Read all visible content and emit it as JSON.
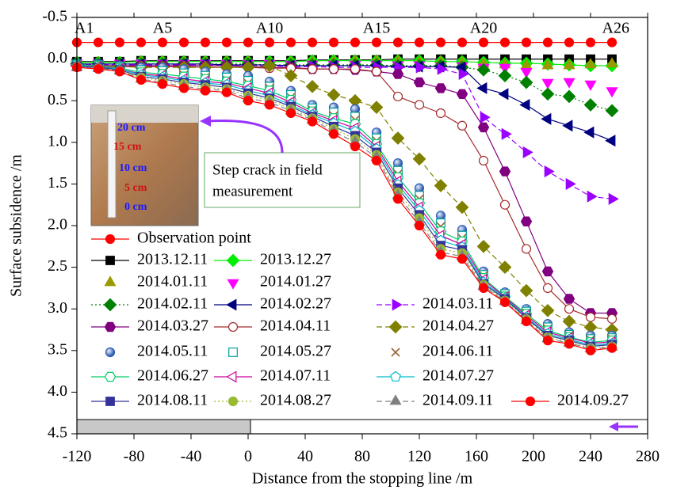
{
  "chart_data": {
    "type": "line",
    "xlabel": "Distance from the stopping line /m",
    "ylabel": "Surface subsidence /m",
    "xlim": [
      -120,
      280
    ],
    "xticks": [
      -120,
      -80,
      -40,
      0,
      40,
      80,
      120,
      160,
      200,
      240,
      280
    ],
    "ylim": [
      -0.5,
      4.5
    ],
    "y_inverted": true,
    "yticks": [
      -0.5,
      {
        "value": 0,
        "label": "0.0"
      },
      0.5,
      {
        "value": 1,
        "label": "1.0"
      },
      1.5,
      {
        "value": 2,
        "label": "2.0"
      },
      2.5,
      {
        "value": 3,
        "label": "3.0"
      },
      3.5,
      {
        "value": 4,
        "label": "4.0"
      },
      4.5
    ],
    "x": [
      -120,
      -105,
      -90,
      -75,
      -60,
      -45,
      -30,
      -15,
      0,
      15,
      30,
      45,
      60,
      75,
      90,
      105,
      120,
      135,
      150,
      165,
      180,
      195,
      210,
      225,
      240,
      255
    ],
    "point_labels": [
      {
        "x": -120,
        "label": "A1"
      },
      {
        "x": -60,
        "label": "A5"
      },
      {
        "x": 15,
        "label": "A10"
      },
      {
        "x": 90,
        "label": "A15"
      },
      {
        "x": 165,
        "label": "A20"
      },
      {
        "x": 255,
        "label": "A26"
      }
    ],
    "annotations": {
      "photo_scale": [
        "20 cm",
        "15 cm",
        "10 cm",
        "5 cm",
        "0 cm"
      ],
      "callout": [
        "Step crack in field",
        "measurement"
      ]
    },
    "series": [
      {
        "name": "Observation point",
        "color": "#ff0000",
        "marker": "circle",
        "filled": true,
        "dash": "solid",
        "values": [
          -0.2,
          -0.2,
          -0.2,
          -0.2,
          -0.2,
          -0.2,
          -0.2,
          -0.2,
          -0.2,
          -0.2,
          -0.2,
          -0.2,
          -0.2,
          -0.2,
          -0.2,
          -0.2,
          -0.2,
          -0.2,
          -0.2,
          -0.2,
          -0.2,
          -0.2,
          -0.2,
          -0.2,
          -0.2,
          -0.2
        ]
      },
      {
        "name": "2013.12.11",
        "color": "#000000",
        "marker": "square",
        "filled": true,
        "dash": "solid",
        "values": [
          0.03,
          0.03,
          0.03,
          0.02,
          0.02,
          0.02,
          0.02,
          0.02,
          0.02,
          0.02,
          0.02,
          0.01,
          0.01,
          0.01,
          0.01,
          0,
          0,
          0,
          0,
          0,
          0,
          0,
          0,
          0,
          0,
          0
        ]
      },
      {
        "name": "2013.12.27",
        "color": "#00ee00",
        "marker": "diamond",
        "filled": true,
        "dash": "solid",
        "values": [
          0.04,
          0.04,
          0.04,
          0.03,
          0.03,
          0.03,
          0.03,
          0.03,
          0.03,
          0.03,
          0.03,
          0.02,
          0.02,
          0.02,
          0.02,
          0.02,
          0.02,
          0.03,
          0.03,
          0.04,
          0.05,
          0.05,
          0.06,
          0.07,
          0.08,
          0.08
        ]
      },
      {
        "name": "2014.01.11",
        "color": "#999900",
        "marker": "tri-up",
        "filled": true,
        "dash": "none",
        "values": [
          0.05,
          0.05,
          0.05,
          0.04,
          0.04,
          0.04,
          0.04,
          0.04,
          0.04,
          0.05,
          0.05,
          0.04,
          0.04,
          0.03,
          0.03,
          0.03,
          0.04,
          0.04,
          0.05,
          0.06,
          0.07,
          0.08,
          0.08,
          0.08,
          0.07,
          0.06
        ]
      },
      {
        "name": "2014.01.27",
        "color": "#ff00ff",
        "marker": "tri-down",
        "filled": true,
        "dash": "none",
        "values": [
          0.05,
          0.05,
          0.05,
          0.05,
          0.05,
          0.05,
          0.05,
          0.05,
          0.05,
          0.05,
          0.06,
          0.06,
          0.06,
          0.06,
          0.06,
          0.07,
          0.07,
          0.08,
          0.08,
          0.1,
          0.1,
          0.15,
          0.28,
          0.27,
          0.3,
          0.38
        ]
      },
      {
        "name": "2014.02.11",
        "color": "#008000",
        "marker": "diamond",
        "filled": true,
        "dash": "dot",
        "values": [
          0.06,
          0.06,
          0.06,
          0.06,
          0.06,
          0.06,
          0.06,
          0.06,
          0.06,
          0.07,
          0.07,
          0.07,
          0.07,
          0.07,
          0.07,
          0.08,
          0.08,
          0.08,
          0.1,
          0.13,
          0.2,
          0.28,
          0.42,
          0.45,
          0.55,
          0.62
        ]
      },
      {
        "name": "2014.02.27",
        "color": "#000080",
        "marker": "tri-left",
        "filled": true,
        "dash": "solid",
        "values": [
          0.06,
          0.06,
          0.06,
          0.06,
          0.06,
          0.06,
          0.06,
          0.07,
          0.07,
          0.07,
          0.08,
          0.08,
          0.08,
          0.08,
          0.08,
          0.09,
          0.09,
          0.09,
          0.1,
          0.35,
          0.42,
          0.55,
          0.72,
          0.8,
          0.88,
          0.98
        ]
      },
      {
        "name": "2014.03.11",
        "color": "#9900ff",
        "marker": "tri-right",
        "filled": true,
        "dash": "dash",
        "values": [
          0.07,
          0.07,
          0.07,
          0.07,
          0.07,
          0.07,
          0.07,
          0.08,
          0.08,
          0.08,
          0.09,
          0.09,
          0.1,
          0.1,
          0.1,
          0.1,
          0.1,
          0.12,
          0.18,
          0.7,
          0.9,
          1.12,
          1.35,
          1.5,
          1.65,
          1.68
        ]
      },
      {
        "name": "2014.03.27",
        "color": "#800080",
        "marker": "hexagon",
        "filled": true,
        "dash": "solid",
        "values": [
          0.08,
          0.08,
          0.08,
          0.08,
          0.08,
          0.08,
          0.08,
          0.08,
          0.09,
          0.1,
          0.1,
          0.12,
          0.12,
          0.13,
          0.15,
          0.18,
          0.28,
          0.35,
          0.42,
          0.82,
          1.35,
          1.95,
          2.55,
          2.88,
          3.05,
          3.05
        ]
      },
      {
        "name": "2014.04.11",
        "color": "#a52a2a",
        "marker": "circle",
        "filled": false,
        "dash": "solid",
        "values": [
          0.08,
          0.08,
          0.09,
          0.09,
          0.09,
          0.09,
          0.1,
          0.1,
          0.1,
          0.11,
          0.11,
          0.12,
          0.12,
          0.12,
          0.15,
          0.45,
          0.55,
          0.65,
          0.8,
          1.22,
          1.75,
          2.28,
          2.75,
          3.0,
          3.1,
          3.12
        ]
      },
      {
        "name": "2014.04.27",
        "color": "#808000",
        "marker": "diamond",
        "filled": true,
        "dash": "dash",
        "values": [
          0.08,
          0.08,
          0.09,
          0.1,
          0.1,
          0.1,
          0.1,
          0.1,
          0.1,
          0.08,
          0.2,
          0.33,
          0.43,
          0.5,
          0.58,
          0.95,
          1.2,
          1.52,
          1.78,
          2.25,
          2.5,
          2.78,
          3.02,
          3.15,
          3.22,
          3.25
        ]
      },
      {
        "name": "2014.05.11",
        "color": "#2f5fb8",
        "marker": "ball",
        "filled": true,
        "dash": "none",
        "values": [
          0.05,
          0.06,
          0.08,
          0.1,
          0.1,
          0.12,
          0.15,
          0.18,
          0.2,
          0.27,
          0.38,
          0.55,
          0.58,
          0.6,
          0.88,
          1.25,
          1.55,
          1.88,
          2.05,
          2.55,
          2.8,
          3.0,
          3.18,
          3.28,
          3.32,
          3.32
        ]
      },
      {
        "name": "2014.05.27",
        "color": "#009999",
        "marker": "square",
        "filled": false,
        "dash": "none",
        "values": [
          0.06,
          0.07,
          0.09,
          0.13,
          0.14,
          0.17,
          0.2,
          0.22,
          0.26,
          0.33,
          0.43,
          0.59,
          0.64,
          0.69,
          0.95,
          1.34,
          1.64,
          1.97,
          2.12,
          2.59,
          2.82,
          3.03,
          3.22,
          3.31,
          3.36,
          3.35
        ]
      },
      {
        "name": "2014.06.11",
        "color": "#996633",
        "marker": "x",
        "filled": false,
        "dash": "none",
        "values": [
          0.07,
          0.08,
          0.1,
          0.15,
          0.16,
          0.19,
          0.22,
          0.25,
          0.29,
          0.35,
          0.46,
          0.61,
          0.68,
          0.73,
          0.98,
          1.38,
          1.68,
          2.01,
          2.15,
          2.6,
          2.84,
          3.05,
          3.24,
          3.32,
          3.37,
          3.36
        ]
      },
      {
        "name": "2014.06.27",
        "color": "#00cc66",
        "marker": "hexagon",
        "filled": false,
        "dash": "solid",
        "values": [
          0.07,
          0.08,
          0.11,
          0.16,
          0.18,
          0.21,
          0.24,
          0.27,
          0.32,
          0.38,
          0.49,
          0.63,
          0.71,
          0.78,
          1.02,
          1.42,
          1.73,
          2.07,
          2.19,
          2.63,
          2.85,
          3.06,
          3.26,
          3.34,
          3.4,
          3.38
        ]
      },
      {
        "name": "2014.07.11",
        "color": "#cc0099",
        "marker": "tri-left",
        "filled": false,
        "dash": "solid",
        "values": [
          0.08,
          0.09,
          0.12,
          0.18,
          0.2,
          0.24,
          0.27,
          0.29,
          0.35,
          0.41,
          0.52,
          0.65,
          0.74,
          0.83,
          1.05,
          1.47,
          1.78,
          2.12,
          2.23,
          2.65,
          2.86,
          3.08,
          3.28,
          3.35,
          3.41,
          3.4
        ]
      },
      {
        "name": "2014.07.27",
        "color": "#00bbcc",
        "marker": "pentagon",
        "filled": false,
        "dash": "solid",
        "values": [
          0.08,
          0.1,
          0.12,
          0.19,
          0.22,
          0.26,
          0.29,
          0.31,
          0.38,
          0.44,
          0.55,
          0.67,
          0.77,
          0.87,
          1.08,
          1.51,
          1.82,
          2.18,
          2.26,
          2.68,
          2.87,
          3.1,
          3.3,
          3.37,
          3.43,
          3.42
        ]
      },
      {
        "name": "2014.08.11",
        "color": "#333399",
        "marker": "square",
        "filled": true,
        "dash": "solid",
        "values": [
          0.09,
          0.1,
          0.13,
          0.21,
          0.24,
          0.28,
          0.31,
          0.34,
          0.41,
          0.47,
          0.57,
          0.69,
          0.81,
          0.92,
          1.12,
          1.55,
          1.87,
          2.24,
          2.29,
          2.7,
          2.88,
          3.11,
          3.32,
          3.38,
          3.45,
          3.43
        ]
      },
      {
        "name": "2014.08.27",
        "color": "#99bb33",
        "marker": "circle",
        "filled": true,
        "dash": "dot",
        "values": [
          0.09,
          0.11,
          0.14,
          0.22,
          0.26,
          0.3,
          0.34,
          0.36,
          0.44,
          0.49,
          0.6,
          0.71,
          0.84,
          0.96,
          1.15,
          1.6,
          1.91,
          2.28,
          2.33,
          2.71,
          2.9,
          3.12,
          3.34,
          3.4,
          3.47,
          3.45
        ]
      },
      {
        "name": "2014.09.11",
        "color": "#808080",
        "marker": "tri-up",
        "filled": true,
        "dash": "dash",
        "values": [
          0.1,
          0.11,
          0.14,
          0.24,
          0.28,
          0.33,
          0.36,
          0.38,
          0.47,
          0.52,
          0.62,
          0.73,
          0.87,
          1.0,
          1.18,
          1.64,
          1.96,
          2.32,
          2.37,
          2.73,
          2.91,
          3.14,
          3.36,
          3.41,
          3.48,
          3.46
        ]
      },
      {
        "name": "2014.09.27",
        "color": "#ff0000",
        "marker": "circle",
        "filled": true,
        "dash": "solid",
        "values": [
          0.1,
          0.12,
          0.15,
          0.25,
          0.3,
          0.35,
          0.38,
          0.4,
          0.5,
          0.55,
          0.65,
          0.75,
          0.9,
          1.05,
          1.22,
          1.68,
          2.0,
          2.35,
          2.4,
          2.75,
          2.92,
          3.15,
          3.38,
          3.42,
          3.5,
          3.47
        ]
      }
    ]
  }
}
